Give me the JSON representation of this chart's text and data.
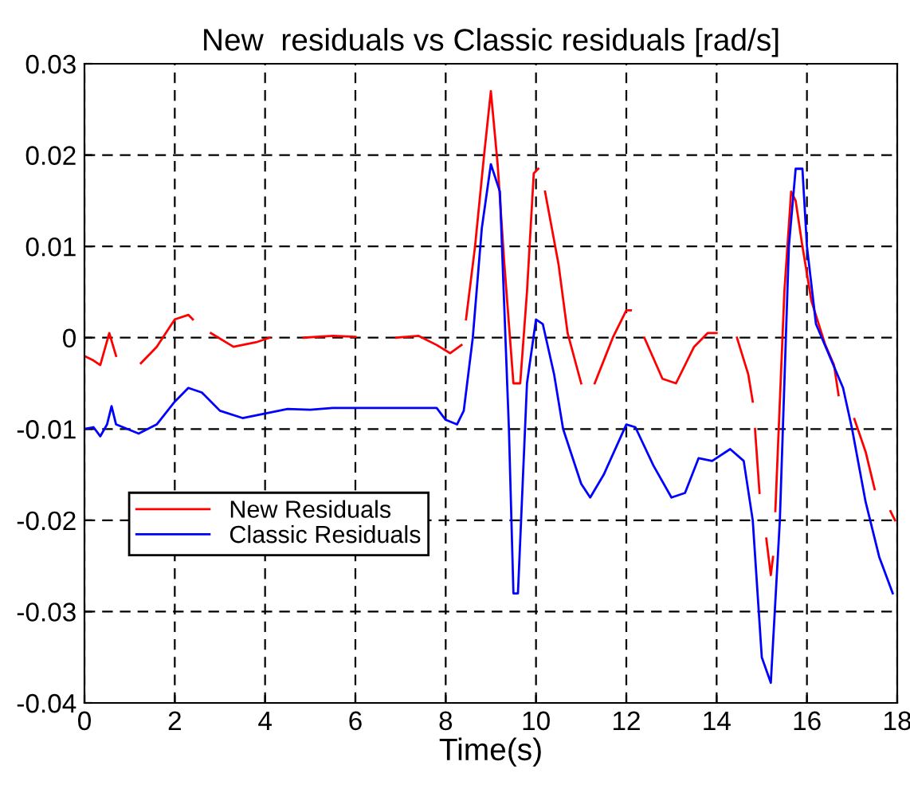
{
  "chart_data": {
    "type": "line",
    "title": "New  residuals vs Classic residuals [rad/s]",
    "xlabel": "Time(s)",
    "xlim": [
      0,
      18
    ],
    "xticks": [
      0,
      2,
      4,
      6,
      8,
      10,
      12,
      14,
      16,
      18
    ],
    "ylim": [
      -0.04,
      0.03
    ],
    "yticks": [
      -0.04,
      -0.03,
      -0.02,
      -0.01,
      0,
      0.01,
      0.02,
      0.03
    ],
    "grid": true,
    "legend": "left",
    "line_style": "solid",
    "marker": "none",
    "series": [
      {
        "name": "New Residuals",
        "color": "#ff0000",
        "x": [
          0,
          0.2,
          0.35,
          0.55,
          0.7,
          0.95,
          1.25,
          1.6,
          2.0,
          2.3,
          2.4,
          2.6,
          2.8,
          3.3,
          3.8,
          4.1,
          4.5,
          4.85,
          5.5,
          6.0,
          6.5,
          6.9,
          7.4,
          7.8,
          8.1,
          8.35,
          8.4,
          8.45,
          8.65,
          8.85,
          9.0,
          9.15,
          9.3,
          9.5,
          9.65,
          9.8,
          9.95,
          10.05,
          10.12,
          10.2,
          10.5,
          10.7,
          11.0,
          11.15,
          11.3,
          11.7,
          12.0,
          12.1,
          12.25,
          12.4,
          12.8,
          13.1,
          13.5,
          13.8,
          14.0,
          14.2,
          14.45,
          14.7,
          14.8,
          14.82,
          14.85,
          14.95,
          15.0,
          15.1,
          15.2,
          15.25,
          15.27,
          15.3,
          15.5,
          15.65,
          15.75,
          15.9,
          16.1,
          16.4,
          16.6,
          16.7,
          16.9,
          17.05,
          17.3,
          17.5,
          17.7,
          17.85,
          17.95
        ],
        "values": [
          -0.002,
          -0.0025,
          -0.003,
          0.0005,
          -0.002,
          null,
          -0.0028,
          -0.001,
          0.002,
          0.0025,
          0.002,
          null,
          0.0005,
          -0.001,
          -0.0005,
          0,
          null,
          0,
          0.0002,
          0.0001,
          null,
          0,
          0.0002,
          -0.0008,
          -0.0017,
          -0.0008,
          null,
          0.002,
          0.01,
          0.02,
          0.027,
          0.019,
          0.008,
          -0.005,
          -0.005,
          0.005,
          0.018,
          0.0185,
          null,
          0.016,
          0.008,
          0.0005,
          -0.005,
          null,
          -0.005,
          0,
          0.003,
          0.003,
          null,
          0,
          -0.0045,
          -0.005,
          -0.001,
          0.0005,
          0.0005,
          null,
          0,
          -0.004,
          -0.007,
          null,
          -0.01,
          -0.017,
          null,
          -0.022,
          -0.026,
          -0.024,
          null,
          -0.019,
          0.005,
          0.016,
          0.015,
          0.01,
          0.004,
          -0.0007,
          -0.003,
          -0.0063,
          null,
          -0.0089,
          -0.0125,
          -0.0166,
          null,
          -0.019,
          -0.02
        ]
      },
      {
        "name": "Classic Residuals",
        "color": "#0000ff",
        "x": [
          0,
          0.2,
          0.35,
          0.5,
          0.6,
          0.7,
          1.2,
          1.6,
          2.0,
          2.3,
          2.6,
          3.0,
          3.5,
          4.0,
          4.5,
          5.0,
          5.5,
          6.0,
          7.0,
          7.8,
          8.0,
          8.25,
          8.4,
          8.6,
          8.8,
          9.0,
          9.2,
          9.4,
          9.5,
          9.6,
          9.8,
          10.0,
          10.15,
          10.4,
          10.6,
          11.0,
          11.2,
          11.5,
          12.0,
          12.2,
          12.6,
          13.0,
          13.3,
          13.6,
          13.9,
          14.3,
          14.6,
          14.8,
          15.0,
          15.2,
          15.4,
          15.6,
          15.75,
          15.9,
          16.0,
          16.2,
          16.5,
          16.8,
          17.0,
          17.3,
          17.6,
          17.9
        ],
        "values": [
          -0.01,
          -0.0098,
          -0.0108,
          -0.0095,
          -0.0075,
          -0.0095,
          -0.0105,
          -0.0095,
          -0.007,
          -0.0055,
          -0.006,
          -0.008,
          -0.0088,
          -0.0083,
          -0.0078,
          -0.0079,
          -0.0077,
          -0.0077,
          -0.0077,
          -0.0077,
          -0.009,
          -0.0095,
          -0.008,
          0,
          0.012,
          0.019,
          0.016,
          -0.01,
          -0.028,
          -0.028,
          -0.005,
          0.002,
          0.0015,
          -0.004,
          -0.01,
          -0.016,
          -0.0175,
          -0.015,
          -0.0095,
          -0.0098,
          -0.014,
          -0.0175,
          -0.017,
          -0.0132,
          -0.0135,
          -0.0122,
          -0.0135,
          -0.02,
          -0.035,
          -0.0378,
          -0.02,
          0.01,
          0.0185,
          0.0185,
          0.01,
          0.0015,
          -0.002,
          -0.0055,
          -0.01,
          -0.018,
          -0.024,
          -0.028
        ]
      }
    ]
  }
}
